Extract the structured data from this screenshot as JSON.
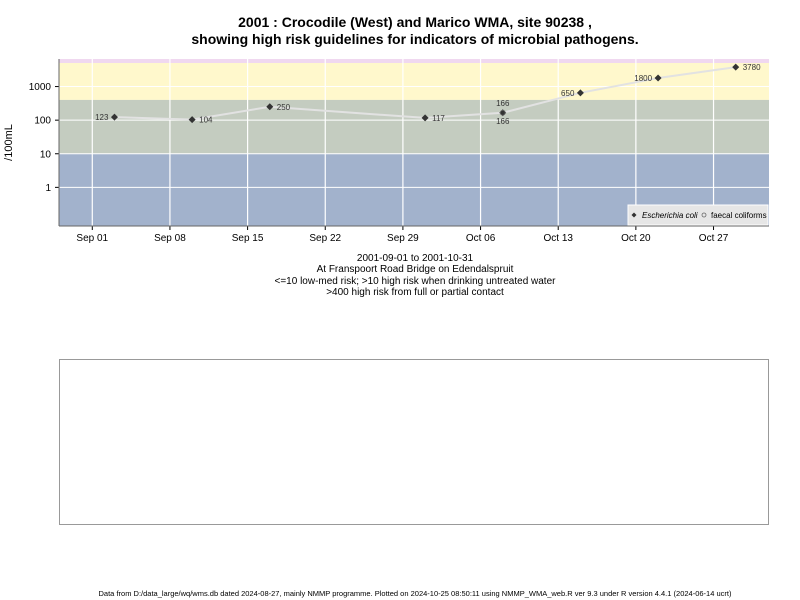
{
  "title_line1": "2001 : Crocodile (West) and Marico WMA, site 90238 ,",
  "title_line2": "showing high risk guidelines for indicators of microbial pathogens.",
  "caption": {
    "date_range": "2001-09-01 to 2001-10-31",
    "location": "At Franspoort Road Bridge on Edendalspruit",
    "guideline1": "<=10 low-med risk; >10 high risk when drinking untreated water",
    "guideline2": ">400 high risk from full or partial contact"
  },
  "footer": "Data from D:/data_large/wq/wms.db dated 2024-08-27, mainly NMMP programme. Plotted on 2024-10-25 08:50:11 using NMMP_WMA_web.R ver 9.3 under R version 4.4.1 (2024-06-14 ucrt)",
  "colors": {
    "band_low": "#a2b2cc",
    "band_mid": "#c4ccc0",
    "band_high": "#fff8cc",
    "band_top": "#f0d8f0",
    "grid": "#ffffff",
    "line": "#e2e2e2",
    "marker": "#333333"
  },
  "chart_data": {
    "type": "line",
    "ylabel": "/100mL",
    "yscale": "log",
    "y_ticks": [
      1,
      10,
      100,
      1000
    ],
    "y_tick_labels": [
      "1",
      "10",
      "100",
      "1000"
    ],
    "x_ticks": [
      "2001-09-01",
      "2001-09-08",
      "2001-09-15",
      "2001-09-22",
      "2001-09-29",
      "2001-10-06",
      "2001-10-13",
      "2001-10-20",
      "2001-10-27"
    ],
    "x_tick_labels": [
      "Sep 01",
      "Sep 08",
      "Sep 15",
      "Sep 22",
      "Sep 29",
      "Oct 06",
      "Oct 13",
      "Oct 20",
      "Oct 27"
    ],
    "bands": [
      {
        "max": 10
      },
      {
        "min": 10,
        "max": 400
      },
      {
        "min": 400
      }
    ],
    "legend": {
      "position": "bottom-right",
      "entries": [
        "Escherichia coli",
        "faecal coliforms"
      ]
    },
    "series": [
      {
        "name": "Escherichia coli",
        "points": [
          {
            "x": "2001-09-03",
            "y": 123,
            "label": "123"
          },
          {
            "x": "2001-09-10",
            "y": 104,
            "label": "104"
          },
          {
            "x": "2001-09-17",
            "y": 250,
            "label": "250"
          },
          {
            "x": "2001-10-01",
            "y": 117,
            "label": "117"
          },
          {
            "x": "2001-10-08",
            "y": 166,
            "label": "166"
          },
          {
            "x": "2001-10-15",
            "y": 650,
            "label": "650"
          },
          {
            "x": "2001-10-22",
            "y": 1800,
            "label": "1800"
          },
          {
            "x": "2001-10-29",
            "y": 3780,
            "label": "3780"
          }
        ]
      },
      {
        "name": "faecal coliforms",
        "points": [
          {
            "x": "2001-10-08",
            "y": 166,
            "label": "166"
          }
        ]
      }
    ]
  }
}
